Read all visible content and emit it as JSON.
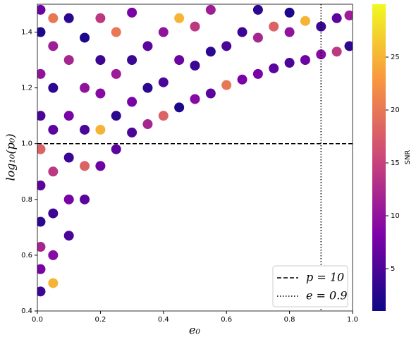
{
  "chart_data": {
    "type": "scatter",
    "x_label": "e₀",
    "y_label": "log₁₀(p₀)",
    "colorbar_label": "SNR",
    "colormap": "plasma",
    "xlim": [
      0,
      1
    ],
    "ylim": [
      0.4,
      1.5
    ],
    "clim": [
      1,
      30
    ],
    "xticks": [
      {
        "value": 0,
        "label": "0.0"
      },
      0.2,
      0.4,
      0.6,
      0.8,
      {
        "value": 1,
        "label": "1.0"
      }
    ],
    "yticks": [
      0.4,
      0.6,
      0.8,
      {
        "value": 1,
        "label": "1.0"
      },
      1.2,
      1.4
    ],
    "cticks": [
      5,
      10,
      15,
      20,
      25
    ],
    "legend_position": "lower right",
    "hlines": [
      {
        "value": 1,
        "label": "p = 10",
        "style": "dashed"
      }
    ],
    "vlines": [
      {
        "value": 0.9,
        "label": "e = 0.9",
        "style": "dotted"
      }
    ],
    "x": [
      0.01,
      0.01,
      0.01,
      0.01,
      0.01,
      0.01,
      0.01,
      0.01,
      0.01,
      0.01,
      0.05,
      0.05,
      0.05,
      0.05,
      0.05,
      0.05,
      0.05,
      0.05,
      0.1,
      0.1,
      0.1,
      0.1,
      0.1,
      0.1,
      0.15,
      0.15,
      0.15,
      0.15,
      0.15,
      0.2,
      0.2,
      0.2,
      0.2,
      0.2,
      0.25,
      0.25,
      0.25,
      0.25,
      0.3,
      0.3,
      0.3,
      0.3,
      0.35,
      0.35,
      0.35,
      0.4,
      0.4,
      0.4,
      0.45,
      0.45,
      0.45,
      0.5,
      0.5,
      0.5,
      0.55,
      0.55,
      0.55,
      0.6,
      0.6,
      0.65,
      0.65,
      0.7,
      0.7,
      0.7,
      0.75,
      0.75,
      0.8,
      0.8,
      0.8,
      0.85,
      0.85,
      0.9,
      0.9,
      0.95,
      0.95,
      0.99,
      0.99
    ],
    "y": [
      0.47,
      0.55,
      0.63,
      0.72,
      0.85,
      0.98,
      1.1,
      1.25,
      1.4,
      1.48,
      0.5,
      0.6,
      0.75,
      0.9,
      1.05,
      1.2,
      1.35,
      1.45,
      0.67,
      0.8,
      0.95,
      1.1,
      1.3,
      1.45,
      0.8,
      0.92,
      1.05,
      1.2,
      1.38,
      0.92,
      1.05,
      1.18,
      1.3,
      1.45,
      0.98,
      1.1,
      1.25,
      1.4,
      1.04,
      1.15,
      1.3,
      1.47,
      1.07,
      1.2,
      1.35,
      1.1,
      1.22,
      1.4,
      1.13,
      1.3,
      1.45,
      1.16,
      1.28,
      1.42,
      1.18,
      1.33,
      1.48,
      1.21,
      1.35,
      1.23,
      1.4,
      1.25,
      1.38,
      1.48,
      1.27,
      1.42,
      1.29,
      1.4,
      1.47,
      1.3,
      1.44,
      1.32,
      1.42,
      1.33,
      1.45,
      1.35,
      1.46
    ],
    "snr": [
      4,
      8,
      12,
      3,
      6,
      18,
      5,
      10,
      2,
      7,
      25,
      9,
      4,
      14,
      6,
      3,
      11,
      20,
      5,
      8,
      4,
      8,
      12,
      3,
      6,
      18,
      5,
      10,
      2,
      7,
      25,
      9,
      4,
      14,
      6,
      3,
      11,
      20,
      5,
      8,
      4,
      8,
      12,
      3,
      6,
      18,
      5,
      10,
      2,
      7,
      25,
      9,
      4,
      14,
      6,
      3,
      11,
      20,
      5,
      8,
      4,
      8,
      12,
      3,
      6,
      18,
      5,
      10,
      2,
      7,
      25,
      9,
      4,
      14,
      6,
      3,
      11
    ]
  }
}
